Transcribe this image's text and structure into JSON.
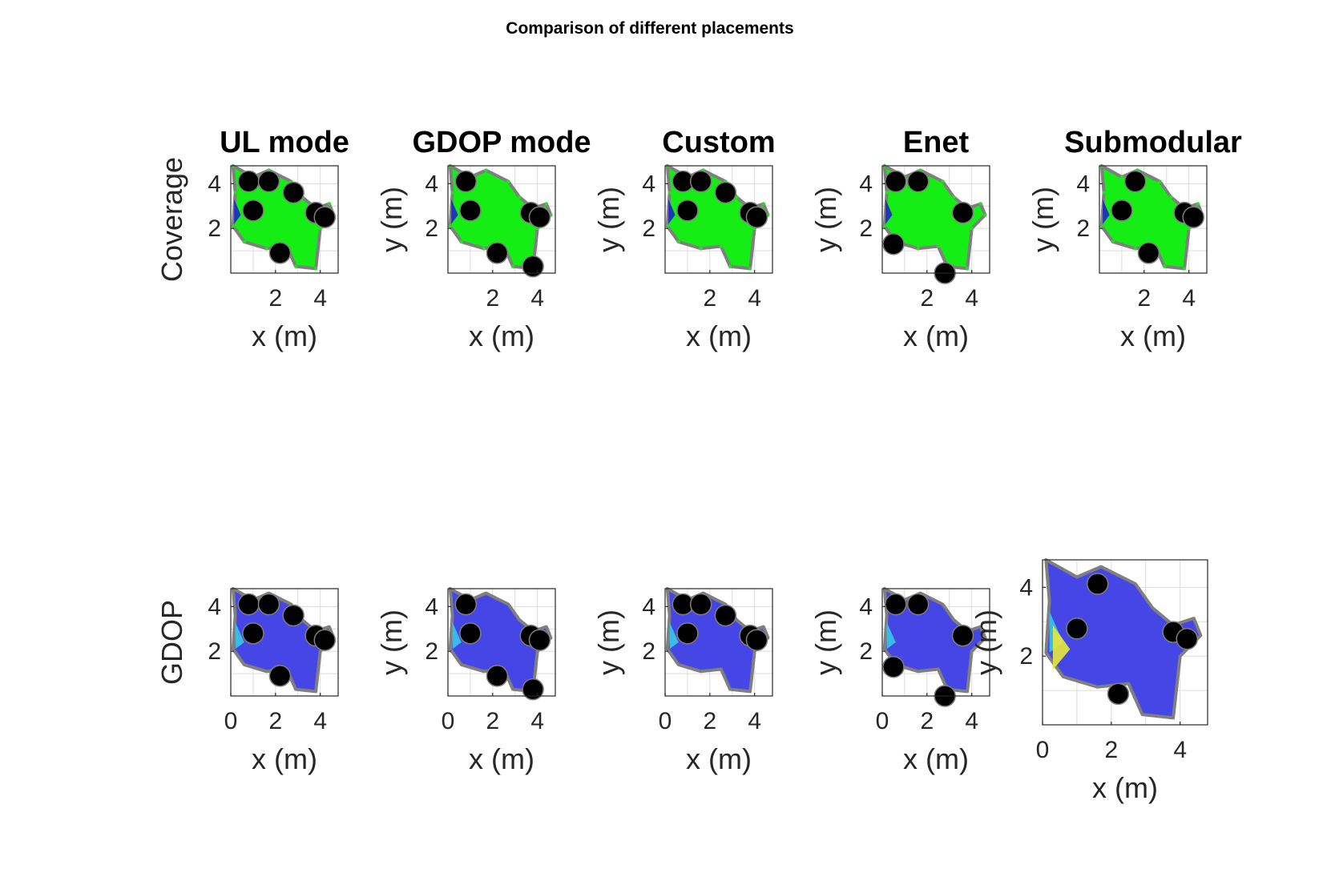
{
  "figure": {
    "title": "Comparison of different placements"
  },
  "colors": {
    "coverage_fill": "#14ee14",
    "coverage_edge_mark": "#2fd82f",
    "gdop_fill": "#4646e6",
    "outline": "#7f7f7f",
    "anchor": "#000000",
    "hole_dark_blue": "#1a1ad0",
    "hole_cyan": "#38c6e6",
    "hot_yellow": "#e8e83a",
    "axes": "#262626",
    "grid": "#dcdcdc"
  },
  "chart_data": {
    "type": "heatmap",
    "layout": "2 rows x 5 columns of small-multiple maps",
    "columns": [
      "UL mode",
      "GDOP mode",
      "Custom",
      "Enet",
      "Submodular"
    ],
    "rows": [
      {
        "key": "coverage",
        "ylabel": "Coverage",
        "fill": "green",
        "tick_x": [
          2,
          4
        ],
        "tick_y": [
          2,
          4
        ]
      },
      {
        "key": "gdop",
        "ylabel": "GDOP",
        "fill": "blue",
        "tick_x": [
          0,
          2,
          4
        ],
        "tick_y": [
          2,
          4
        ]
      }
    ],
    "xlabel": "x (m)",
    "ylabel_other": "y (m)",
    "xlim": [
      0,
      4.8
    ],
    "ylim": [
      0,
      4.8
    ],
    "grid": true,
    "room_outline": [
      [
        0.1,
        4.8
      ],
      [
        1.0,
        4.3
      ],
      [
        1.7,
        4.6
      ],
      [
        2.7,
        4.1
      ],
      [
        3.2,
        3.4
      ],
      [
        3.8,
        2.9
      ],
      [
        4.4,
        3.1
      ],
      [
        4.6,
        2.6
      ],
      [
        4.0,
        2.0
      ],
      [
        3.8,
        0.2
      ],
      [
        2.9,
        0.3
      ],
      [
        2.5,
        1.2
      ],
      [
        1.6,
        1.1
      ],
      [
        0.6,
        1.4
      ],
      [
        0.1,
        2.1
      ],
      [
        0.2,
        3.6
      ]
    ],
    "anchors": {
      "UL mode": [
        [
          0.8,
          4.1
        ],
        [
          1.7,
          4.1
        ],
        [
          2.8,
          3.6
        ],
        [
          3.8,
          2.7
        ],
        [
          4.2,
          2.5
        ],
        [
          1.0,
          2.8
        ],
        [
          2.2,
          0.9
        ]
      ],
      "GDOP mode": [
        [
          0.8,
          4.1
        ],
        [
          1.0,
          2.8
        ],
        [
          3.7,
          2.7
        ],
        [
          4.1,
          2.5
        ],
        [
          2.2,
          0.9
        ],
        [
          3.8,
          0.3
        ]
      ],
      "Custom": [
        [
          0.8,
          4.1
        ],
        [
          1.6,
          4.1
        ],
        [
          2.7,
          3.6
        ],
        [
          3.8,
          2.7
        ],
        [
          4.1,
          2.5
        ],
        [
          1.0,
          2.8
        ]
      ],
      "Enet": [
        [
          0.6,
          4.1
        ],
        [
          1.6,
          4.1
        ],
        [
          3.6,
          2.7
        ],
        [
          0.5,
          1.3
        ],
        [
          2.8,
          0.0
        ]
      ],
      "Submodular": [
        [
          1.6,
          4.1
        ],
        [
          1.0,
          2.8
        ],
        [
          3.8,
          2.7
        ],
        [
          4.2,
          2.5
        ],
        [
          2.2,
          0.9
        ]
      ]
    }
  }
}
